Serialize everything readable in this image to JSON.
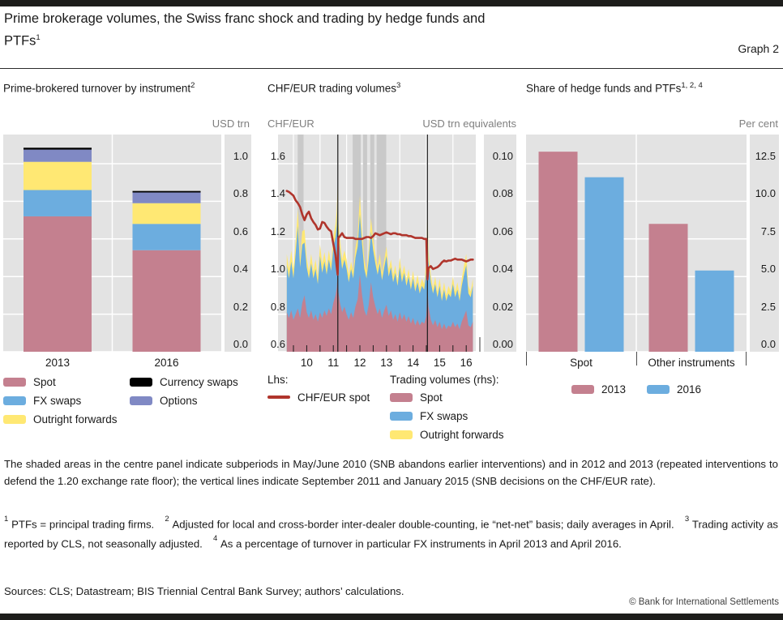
{
  "page": {
    "title_line1": "Prime brokerage volumes, the Swiss franc shock and trading by hedge funds and",
    "title_line2": "PTFs",
    "title_sup": "1",
    "graph_label": "Graph 2",
    "copyright": "© Bank for International Settlements"
  },
  "colors": {
    "plot_background": "#e3e3e3",
    "gridline": "#ffffff",
    "shaded_band": "#c9c9c9",
    "axis_text": "#7f7f7f",
    "spot_pink": "#c4808f",
    "fx_swaps_blue": "#6caddf",
    "outright_forwards_yellow": "#ffe873",
    "options_purple": "#8089c4",
    "currency_swaps_black": "#000000",
    "chf_eur_red": "#b0352c"
  },
  "panels": {
    "left": {
      "title": "Prime-brokered turnover by instrument",
      "title_sup": "2",
      "unit": "USD trn"
    },
    "center": {
      "title": "CHF/EUR trading volumes",
      "title_sup": "3",
      "lhs_unit": "CHF/EUR",
      "rhs_unit": "USD trn equivalents",
      "legend": {
        "lhs_header": "Lhs:",
        "lhs_item": "CHF/EUR spot",
        "rhs_header": "Trading volumes (rhs):"
      }
    },
    "right": {
      "title": "Share of hedge funds and PTFs",
      "title_sup": "1, 2, 4",
      "unit": "Per cent"
    }
  },
  "notes": {
    "paragraph": "The shaded areas in the centre panel indicate subperiods in May/June 2010 (SNB abandons earlier interventions) and in 2012 and 2013 (repeated interventions to defend the 1.20 exchange rate floor); the vertical lines indicate September 2011 and January 2015 (SNB decisions on the CHF/EUR rate).",
    "footnotes": [
      {
        "marker": "1",
        "text": "PTFs = principal trading firms."
      },
      {
        "marker": "2",
        "text": "Adjusted for local and cross-border inter-dealer double-counting, ie “net-net” basis; daily averages in April."
      },
      {
        "marker": "3",
        "text": "Trading activity as reported by CLS, not seasonally adjusted."
      },
      {
        "marker": "4",
        "text": "As a percentage of turnover in particular FX instruments in April 2013 and April 2016."
      }
    ],
    "sources": "Sources: CLS; Datastream; BIS Triennial Central Bank Survey; authors’ calculations."
  },
  "chart_data": [
    {
      "id": "prime_brokered_turnover",
      "type": "bar",
      "stacked": true,
      "title": "Prime-brokered turnover by instrument",
      "ylabel": "USD trn",
      "categories": [
        "2013",
        "2016"
      ],
      "series": [
        {
          "name": "Spot",
          "color": "#c4808f",
          "values": [
            0.72,
            0.54
          ]
        },
        {
          "name": "FX swaps",
          "color": "#6caddf",
          "values": [
            0.14,
            0.14
          ]
        },
        {
          "name": "Outright forwards",
          "color": "#ffe873",
          "values": [
            0.15,
            0.11
          ]
        },
        {
          "name": "Options",
          "color": "#8089c4",
          "values": [
            0.065,
            0.057
          ]
        },
        {
          "name": "Currency swaps",
          "color": "#000000",
          "values": [
            0.01,
            0.008
          ]
        }
      ],
      "ylim": [
        0,
        1.155
      ],
      "yticks": {
        "values": [
          0.0,
          0.2,
          0.4,
          0.6,
          0.8,
          1.0
        ],
        "labels": [
          "0.0",
          "0.2",
          "0.4",
          "0.6",
          "0.8",
          "1.0"
        ]
      },
      "legend_columns": [
        [
          "Spot",
          "FX swaps",
          "Outright forwards"
        ],
        [
          "Currency swaps",
          "Options"
        ]
      ],
      "grid": true,
      "legend_position": "below"
    },
    {
      "id": "chf_eur_trading_volumes",
      "type": "area",
      "title": "CHF/EUR trading volumes",
      "left_axis": {
        "label": "CHF/EUR",
        "lim": [
          0.6,
          1.755
        ],
        "ticks": {
          "values": [
            0.6,
            0.8,
            1.0,
            1.2,
            1.4,
            1.6
          ],
          "labels": [
            "0.6",
            "0.8",
            "1.0",
            "1.2",
            "1.4",
            "1.6"
          ]
        }
      },
      "right_axis": {
        "label": "USD trn equivalents",
        "lim": [
          0,
          0.1155
        ],
        "ticks": {
          "values": [
            0.0,
            0.02,
            0.04,
            0.06,
            0.08,
            0.1
          ],
          "labels": [
            "0.00",
            "0.02",
            "0.04",
            "0.06",
            "0.08",
            "0.10"
          ]
        }
      },
      "x_axis": {
        "lim": [
          2009.42,
          2016.86
        ],
        "labels": [
          "10",
          "11",
          "12",
          "13",
          "14",
          "15",
          "16"
        ],
        "label_positions": [
          2010.5,
          2011.5,
          2012.5,
          2013.5,
          2014.5,
          2015.5,
          2016.5
        ],
        "minor_ticks": [
          2010.0,
          2010.5,
          2011.0,
          2011.5,
          2012.0,
          2012.5,
          2013.0,
          2013.5,
          2014.0,
          2014.5,
          2015.0,
          2015.5,
          2016.0,
          2016.5
        ],
        "year_gridlines": [
          2010,
          2011,
          2012,
          2013,
          2014,
          2015,
          2016
        ]
      },
      "shaded_bands": [
        [
          2010.16,
          2010.38
        ],
        [
          2012.23,
          2012.53
        ],
        [
          2012.62,
          2012.77
        ],
        [
          2012.89,
          2013.04
        ],
        [
          2013.13,
          2013.49
        ]
      ],
      "vlines": [
        2011.67,
        2015.04
      ],
      "x": [
        2009.75,
        2009.833,
        2009.917,
        2010.0,
        2010.083,
        2010.167,
        2010.25,
        2010.333,
        2010.417,
        2010.5,
        2010.583,
        2010.667,
        2010.75,
        2010.833,
        2010.917,
        2011.0,
        2011.083,
        2011.167,
        2011.25,
        2011.333,
        2011.417,
        2011.5,
        2011.583,
        2011.63,
        2011.665,
        2011.69,
        2011.75,
        2011.833,
        2011.917,
        2012.0,
        2012.083,
        2012.167,
        2012.25,
        2012.333,
        2012.417,
        2012.5,
        2012.583,
        2012.667,
        2012.75,
        2012.833,
        2012.917,
        2013.0,
        2013.083,
        2013.167,
        2013.25,
        2013.333,
        2013.417,
        2013.5,
        2013.583,
        2013.667,
        2013.75,
        2013.833,
        2013.917,
        2014.0,
        2014.083,
        2014.167,
        2014.25,
        2014.333,
        2014.417,
        2014.5,
        2014.583,
        2014.667,
        2014.75,
        2014.833,
        2014.917,
        2015.0,
        2015.04,
        2015.08,
        2015.167,
        2015.25,
        2015.333,
        2015.417,
        2015.5,
        2015.583,
        2015.667,
        2015.75,
        2015.833,
        2015.917,
        2016.0,
        2016.083,
        2016.167,
        2016.25,
        2016.333,
        2016.417,
        2016.5,
        2016.583,
        2016.667,
        2016.75
      ],
      "areas": [
        {
          "name": "Spot",
          "color": "#c4808f",
          "values": [
            0.021,
            0.018,
            0.022,
            0.017,
            0.02,
            0.023,
            0.018,
            0.026,
            0.03,
            0.021,
            0.018,
            0.022,
            0.017,
            0.02,
            0.016,
            0.021,
            0.018,
            0.022,
            0.019,
            0.023,
            0.02,
            0.026,
            0.03,
            0.034,
            0.042,
            0.032,
            0.026,
            0.021,
            0.024,
            0.02,
            0.017,
            0.021,
            0.018,
            0.024,
            0.028,
            0.041,
            0.03,
            0.022,
            0.019,
            0.025,
            0.037,
            0.029,
            0.024,
            0.02,
            0.023,
            0.018,
            0.022,
            0.025,
            0.019,
            0.022,
            0.017,
            0.02,
            0.016,
            0.021,
            0.017,
            0.02,
            0.016,
            0.019,
            0.015,
            0.018,
            0.014,
            0.017,
            0.014,
            0.016,
            0.015,
            0.019,
            0.036,
            0.024,
            0.017,
            0.014,
            0.017,
            0.013,
            0.016,
            0.012,
            0.015,
            0.012,
            0.014,
            0.013,
            0.016,
            0.013,
            0.015,
            0.012,
            0.016,
            0.019,
            0.022,
            0.014,
            0.013,
            0.016
          ]
        },
        {
          "name": "FX swaps",
          "color": "#6caddf",
          "values": [
            0.025,
            0.021,
            0.026,
            0.022,
            0.032,
            0.044,
            0.027,
            0.031,
            0.028,
            0.024,
            0.021,
            0.025,
            0.022,
            0.024,
            0.02,
            0.03,
            0.024,
            0.026,
            0.022,
            0.026,
            0.023,
            0.029,
            0.031,
            0.033,
            0.038,
            0.03,
            0.028,
            0.023,
            0.025,
            0.024,
            0.02,
            0.023,
            0.021,
            0.026,
            0.028,
            0.032,
            0.027,
            0.022,
            0.02,
            0.024,
            0.027,
            0.025,
            0.023,
            0.021,
            0.024,
            0.02,
            0.023,
            0.026,
            0.021,
            0.023,
            0.02,
            0.022,
            0.019,
            0.024,
            0.02,
            0.022,
            0.019,
            0.021,
            0.018,
            0.021,
            0.018,
            0.02,
            0.017,
            0.019,
            0.018,
            0.024,
            0.031,
            0.024,
            0.02,
            0.017,
            0.019,
            0.016,
            0.019,
            0.015,
            0.018,
            0.015,
            0.017,
            0.016,
            0.02,
            0.016,
            0.018,
            0.015,
            0.019,
            0.022,
            0.024,
            0.017,
            0.016,
            0.019
          ]
        },
        {
          "name": "Outright forwards",
          "color": "#ffe873",
          "values": [
            0.006,
            0.005,
            0.006,
            0.005,
            0.007,
            0.009,
            0.005,
            0.007,
            0.007,
            0.005,
            0.004,
            0.005,
            0.004,
            0.005,
            0.004,
            0.006,
            0.005,
            0.005,
            0.004,
            0.005,
            0.004,
            0.006,
            0.007,
            0.008,
            0.01,
            0.007,
            0.006,
            0.005,
            0.005,
            0.005,
            0.004,
            0.004,
            0.004,
            0.005,
            0.006,
            0.01,
            0.007,
            0.005,
            0.004,
            0.005,
            0.007,
            0.006,
            0.005,
            0.004,
            0.005,
            0.004,
            0.004,
            0.005,
            0.004,
            0.004,
            0.004,
            0.004,
            0.003,
            0.005,
            0.004,
            0.004,
            0.003,
            0.004,
            0.003,
            0.004,
            0.003,
            0.004,
            0.003,
            0.004,
            0.003,
            0.005,
            0.01,
            0.006,
            0.004,
            0.003,
            0.004,
            0.003,
            0.004,
            0.003,
            0.004,
            0.003,
            0.004,
            0.003,
            0.004,
            0.003,
            0.004,
            0.003,
            0.004,
            0.005,
            0.006,
            0.004,
            0.003,
            0.004
          ]
        }
      ],
      "line": {
        "name": "CHF/EUR spot",
        "color": "#b0352c",
        "axis": "left",
        "values": [
          1.455,
          1.45,
          1.44,
          1.43,
          1.405,
          1.39,
          1.37,
          1.33,
          1.3,
          1.33,
          1.345,
          1.31,
          1.29,
          1.275,
          1.25,
          1.255,
          1.29,
          1.285,
          1.265,
          1.25,
          1.24,
          1.175,
          1.115,
          1.05,
          1.01,
          1.205,
          1.215,
          1.23,
          1.21,
          1.205,
          1.205,
          1.205,
          1.205,
          1.2,
          1.2,
          1.2,
          1.2,
          1.205,
          1.21,
          1.21,
          1.205,
          1.215,
          1.23,
          1.225,
          1.22,
          1.225,
          1.23,
          1.235,
          1.23,
          1.225,
          1.23,
          1.23,
          1.225,
          1.225,
          1.22,
          1.22,
          1.22,
          1.215,
          1.215,
          1.21,
          1.205,
          1.205,
          1.205,
          1.205,
          1.2,
          1.2,
          0.985,
          1.045,
          1.055,
          1.04,
          1.045,
          1.05,
          1.06,
          1.075,
          1.085,
          1.08,
          1.085,
          1.085,
          1.09,
          1.095,
          1.09,
          1.09,
          1.09,
          1.085,
          1.08,
          1.085,
          1.09,
          1.09
        ]
      }
    },
    {
      "id": "share_hedge_funds_ptfs",
      "type": "bar",
      "grouped": true,
      "title": "Share of hedge funds and PTFs",
      "ylabel": "Per cent",
      "categories": [
        "Spot",
        "Other instruments"
      ],
      "series": [
        {
          "name": "2013",
          "color": "#c4808f",
          "values": [
            13.3,
            8.5
          ]
        },
        {
          "name": "2016",
          "color": "#6caddf",
          "values": [
            11.6,
            5.4
          ]
        }
      ],
      "ylim": [
        0,
        14.44
      ],
      "yticks": {
        "values": [
          0.0,
          2.5,
          5.0,
          7.5,
          10.0,
          12.5
        ],
        "labels": [
          "0.0",
          "2.5",
          "5.0",
          "7.5",
          "10.0",
          "12.5"
        ]
      },
      "grid": true,
      "legend_position": "below"
    }
  ]
}
